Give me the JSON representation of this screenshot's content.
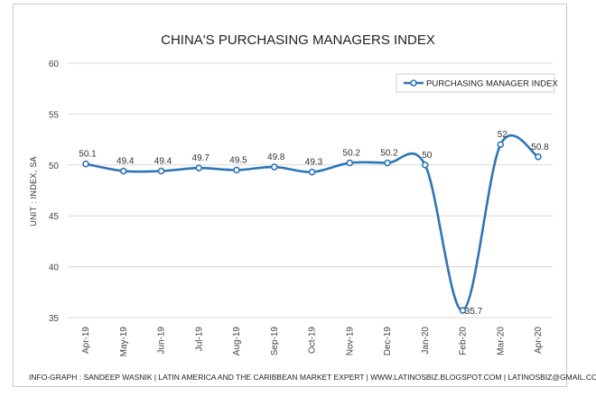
{
  "chart_data": {
    "type": "line",
    "title": "CHINA'S PURCHASING MANAGERS INDEX",
    "ylabel": "UNIT : INDEX, SA",
    "xlabel": "",
    "ylim": [
      35,
      60
    ],
    "yticks": [
      35,
      40,
      45,
      50,
      55,
      60
    ],
    "grid": "horizontal",
    "legend_position": "top-right",
    "categories": [
      "Apr-19",
      "May-19",
      "Jun-19",
      "Jul-19",
      "Aug-19",
      "Sep-19",
      "Oct-19",
      "Nov-19",
      "Dec-19",
      "Jan-20",
      "Feb-20",
      "Mar-20",
      "Apr-20"
    ],
    "series": [
      {
        "name": "PURCHASING MANAGER INDEX",
        "values": [
          50.1,
          49.4,
          49.4,
          49.7,
          49.5,
          49.8,
          49.3,
          50.2,
          50.2,
          50,
          35.7,
          52,
          50.8
        ],
        "labels": [
          "50.1",
          "49.4",
          "49.4",
          "49.7",
          "49.5",
          "49.8",
          "49.3",
          "50.2",
          "50.2",
          "50",
          "35.7",
          "52",
          "50.8"
        ],
        "color": "#2e75b6"
      }
    ],
    "footer": "INFO-GRAPH : SANDEEP WASNIK | LATIN AMERICA AND THE CARIBBEAN MARKET EXPERT | WWW.LATINOSBIZ.BLOGSPOT.COM | LATINOSBIZ@GMAIL.COM"
  },
  "colors": {
    "line": "#2e75b6",
    "grid": "#d9d9d9",
    "marker_fill": "#ffffff"
  }
}
